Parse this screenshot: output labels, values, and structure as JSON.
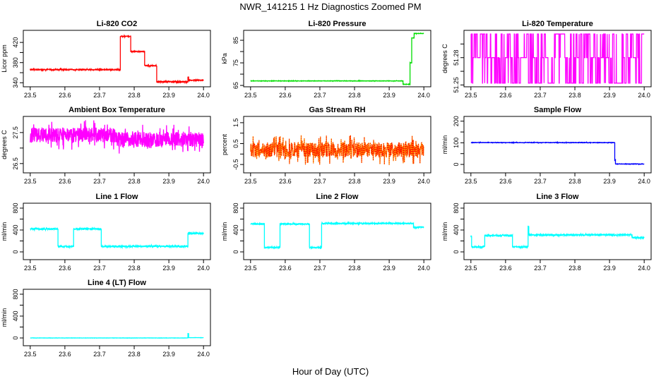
{
  "title": "NWR_141215  1 Hz Diagnostics Zoomed PM",
  "xlabel": "Hour of Day (UTC)",
  "chart_data": [
    {
      "type": "line",
      "title": "Li-820 CO2",
      "ylabel": "Licor ppm",
      "color": "#ff0000",
      "xlim": [
        23.48,
        24.02
      ],
      "ylim": [
        332,
        444
      ],
      "xticks": [
        "23.5",
        "23.6",
        "23.7",
        "23.8",
        "23.9",
        "24.0"
      ],
      "yticks": [
        340,
        360,
        380,
        400,
        420
      ],
      "ytick_labels": [
        "340",
        "",
        "380",
        "",
        "420"
      ],
      "segments": [
        [
          23.5,
          23.76,
          366
        ],
        [
          23.76,
          23.79,
          432
        ],
        [
          23.79,
          23.83,
          402
        ],
        [
          23.83,
          23.865,
          374
        ],
        [
          23.865,
          23.955,
          342
        ],
        [
          23.955,
          23.957,
          352
        ],
        [
          23.957,
          24.0,
          345
        ]
      ],
      "noise": 1.2
    },
    {
      "type": "line",
      "title": "Li-820 Pressure",
      "ylabel": "kPa",
      "color": "#00dd00",
      "xlim": [
        23.48,
        24.02
      ],
      "ylim": [
        64.4,
        89.4
      ],
      "xticks": [
        "23.5",
        "23.6",
        "23.7",
        "23.8",
        "23.9",
        "24.0"
      ],
      "yticks": [
        65,
        70,
        75,
        80,
        85
      ],
      "ytick_labels": [
        "65",
        "",
        "75",
        "",
        "85"
      ],
      "segments": [
        [
          23.5,
          23.94,
          67
        ],
        [
          23.94,
          23.96,
          65.5
        ],
        [
          23.96,
          23.965,
          75
        ],
        [
          23.965,
          23.972,
          86
        ],
        [
          23.972,
          24.0,
          88
        ]
      ],
      "noise": 0.1
    },
    {
      "type": "line",
      "title": "Li-820 Temperature",
      "ylabel": "degrees C",
      "color": "#ff00ff",
      "xlim": [
        23.48,
        24.02
      ],
      "ylim": [
        51.248,
        51.31
      ],
      "xticks": [
        "23.5",
        "23.6",
        "23.7",
        "23.8",
        "23.9",
        "24.0"
      ],
      "yticks": [
        51.25,
        51.265,
        51.28,
        51.295
      ],
      "ytick_labels": [
        "51.25",
        "",
        "51.28",
        ""
      ],
      "levels": [
        51.252,
        51.28,
        51.306
      ],
      "pattern": "quantized-switching"
    },
    {
      "type": "line",
      "title": "Ambient Box Temperature",
      "ylabel": "degrees C",
      "color": "#ff00ff",
      "xlim": [
        23.48,
        24.02
      ],
      "ylim": [
        26.2,
        28.02
      ],
      "xticks": [
        "23.5",
        "23.6",
        "23.7",
        "23.8",
        "23.9",
        "24.0"
      ],
      "yticks": [
        26.5,
        27.0,
        27.5
      ],
      "ytick_labels": [
        "26.5",
        "",
        "27.5"
      ],
      "segments": [
        [
          23.5,
          23.75,
          27.42
        ],
        [
          23.75,
          24.0,
          27.28
        ]
      ],
      "noise": 0.3
    },
    {
      "type": "line",
      "title": "Gas Stream RH",
      "ylabel": "percent",
      "color": "#ff9900",
      "color2": "#ff0000",
      "xlim": [
        23.48,
        24.02
      ],
      "ylim": [
        -0.9,
        1.8
      ],
      "xticks": [
        "23.5",
        "23.6",
        "23.7",
        "23.8",
        "23.9",
        "24.0"
      ],
      "yticks": [
        -0.5,
        0,
        0.5,
        1,
        1.5
      ],
      "ytick_labels": [
        "-0.5",
        "",
        "0.5",
        "",
        "1.5"
      ],
      "segments": [
        [
          23.5,
          24.0,
          0.2
        ]
      ],
      "noise": 0.45
    },
    {
      "type": "line",
      "title": "Sample Flow",
      "ylabel": "ml/min",
      "color": "#0000ff",
      "xlim": [
        23.48,
        24.02
      ],
      "ylim": [
        -39,
        222
      ],
      "xticks": [
        "23.5",
        "23.6",
        "23.7",
        "23.8",
        "23.9",
        "24.0"
      ],
      "yticks": [
        0,
        50,
        100,
        150,
        200
      ],
      "ytick_labels": [
        "0",
        "",
        "100",
        "",
        "200"
      ],
      "segments": [
        [
          23.5,
          23.915,
          101
        ],
        [
          23.915,
          23.917,
          20
        ],
        [
          23.917,
          24.0,
          2
        ]
      ],
      "noise": 1.2
    },
    {
      "type": "line",
      "title": "Line 1 Flow",
      "ylabel": "ml/min",
      "color": "#00ffff",
      "xlim": [
        23.48,
        24.02
      ],
      "ylim": [
        -142,
        890
      ],
      "xticks": [
        "23.5",
        "23.6",
        "23.7",
        "23.8",
        "23.9",
        "24.0"
      ],
      "yticks": [
        0,
        200,
        400,
        600,
        800
      ],
      "ytick_labels": [
        "0",
        "",
        "400",
        "",
        "800"
      ],
      "segments": [
        [
          23.5,
          23.58,
          420
        ],
        [
          23.58,
          23.625,
          100
        ],
        [
          23.625,
          23.705,
          420
        ],
        [
          23.705,
          23.955,
          100
        ],
        [
          23.955,
          24.0,
          340
        ]
      ],
      "noise": 15
    },
    {
      "type": "line",
      "title": "Line 2 Flow",
      "ylabel": "ml/min",
      "color": "#00ffff",
      "xlim": [
        23.48,
        24.02
      ],
      "ylim": [
        -142,
        890
      ],
      "xticks": [
        "23.5",
        "23.6",
        "23.7",
        "23.8",
        "23.9",
        "24.0"
      ],
      "yticks": [
        0,
        200,
        400,
        600,
        800
      ],
      "ytick_labels": [
        "0",
        "",
        "400",
        "",
        "800"
      ],
      "segments": [
        [
          23.5,
          23.54,
          510
        ],
        [
          23.54,
          23.585,
          80
        ],
        [
          23.585,
          23.67,
          510
        ],
        [
          23.67,
          23.705,
          80
        ],
        [
          23.705,
          23.97,
          520
        ],
        [
          23.97,
          24.0,
          450
        ]
      ],
      "noise": 12
    },
    {
      "type": "line",
      "title": "Line 3 Flow",
      "ylabel": "ml/min",
      "color": "#00ffff",
      "xlim": [
        23.48,
        24.02
      ],
      "ylim": [
        -142,
        890
      ],
      "xticks": [
        "23.5",
        "23.6",
        "23.7",
        "23.8",
        "23.9",
        "24.0"
      ],
      "yticks": [
        0,
        200,
        400,
        600,
        800
      ],
      "ytick_labels": [
        "0",
        "",
        "400",
        "",
        "800"
      ],
      "segments": [
        [
          23.5,
          23.502,
          280
        ],
        [
          23.502,
          23.54,
          90
        ],
        [
          23.54,
          23.62,
          300
        ],
        [
          23.62,
          23.665,
          90
        ],
        [
          23.665,
          23.667,
          460
        ],
        [
          23.667,
          23.965,
          310
        ],
        [
          23.965,
          24.0,
          260
        ]
      ],
      "noise": 15
    },
    {
      "type": "line",
      "title": "Line 4 (LT) Flow",
      "ylabel": "ml/min",
      "color": "#00ffff",
      "xlim": [
        23.48,
        24.02
      ],
      "ylim": [
        -142,
        890
      ],
      "xticks": [
        "23.5",
        "23.6",
        "23.7",
        "23.8",
        "23.9",
        "24.0"
      ],
      "yticks": [
        0,
        200,
        400,
        600,
        800
      ],
      "ytick_labels": [
        "0",
        "",
        "400",
        "",
        "800"
      ],
      "segments": [
        [
          23.5,
          23.955,
          0
        ],
        [
          23.955,
          23.957,
          80
        ],
        [
          23.957,
          24.0,
          5
        ]
      ],
      "noise": 2
    }
  ]
}
